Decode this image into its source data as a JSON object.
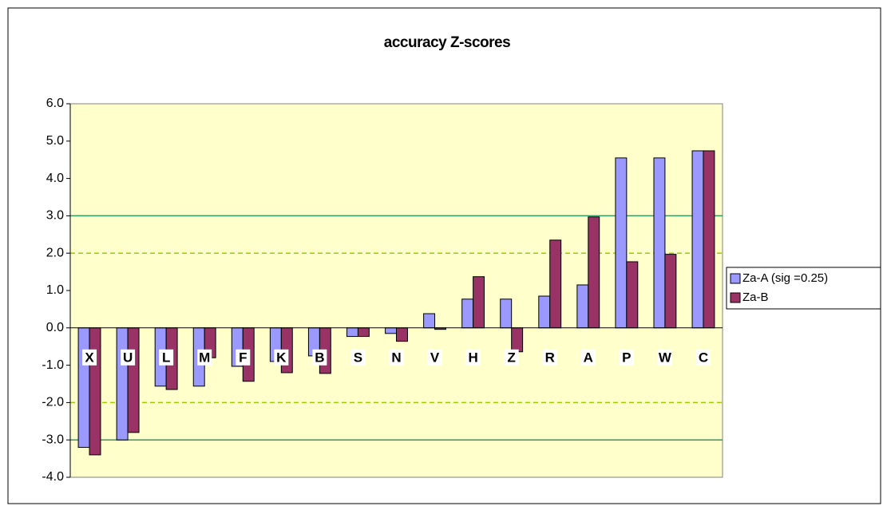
{
  "chart_data": {
    "type": "bar",
    "title": "accuracy Z-scores",
    "categories": [
      "X",
      "U",
      "L",
      "M",
      "F",
      "K",
      "B",
      "S",
      "N",
      "V",
      "H",
      "Z",
      "R",
      "A",
      "P",
      "W",
      "C"
    ],
    "series": [
      {
        "name": "Za-A (sig =0.25)",
        "color": "#9999ff",
        "values": [
          -3.2,
          -3.0,
          -1.56,
          -1.56,
          -1.03,
          -0.9,
          -0.75,
          -0.23,
          -0.15,
          0.38,
          0.77,
          0.77,
          0.85,
          1.15,
          4.55,
          4.55,
          4.74
        ]
      },
      {
        "name": "Za-B",
        "color": "#993366",
        "values": [
          -3.4,
          -2.8,
          -1.65,
          -0.8,
          -1.43,
          -1.2,
          -1.22,
          -0.23,
          -0.36,
          -0.04,
          1.37,
          -0.64,
          2.35,
          2.97,
          1.77,
          1.97,
          4.74
        ]
      }
    ],
    "ylim": [
      -4.0,
      6.0
    ],
    "yticks": [
      {
        "value": -4,
        "label": "-4.0"
      },
      {
        "value": -3,
        "label": "-3.0"
      },
      {
        "value": -2,
        "label": "-2.0"
      },
      {
        "value": -1,
        "label": "-1.0"
      },
      {
        "value": 0,
        "label": "0.0"
      },
      {
        "value": 1,
        "label": "1.0"
      },
      {
        "value": 2,
        "label": "2.0"
      },
      {
        "value": 3,
        "label": "3.0"
      },
      {
        "value": 4,
        "label": "4.0"
      },
      {
        "value": 5,
        "label": "5.0"
      },
      {
        "value": 6,
        "label": "6.0"
      }
    ],
    "reference_lines": [
      {
        "value": 3.0,
        "color": "#339966",
        "dashed": false
      },
      {
        "value": -3.0,
        "color": "#339966",
        "dashed": false
      },
      {
        "value": 2.0,
        "color": "#99cc00",
        "dashed": true
      },
      {
        "value": -2.0,
        "color": "#99cc00",
        "dashed": true
      }
    ],
    "plot_background": "#ffffcc",
    "legend": "right"
  }
}
